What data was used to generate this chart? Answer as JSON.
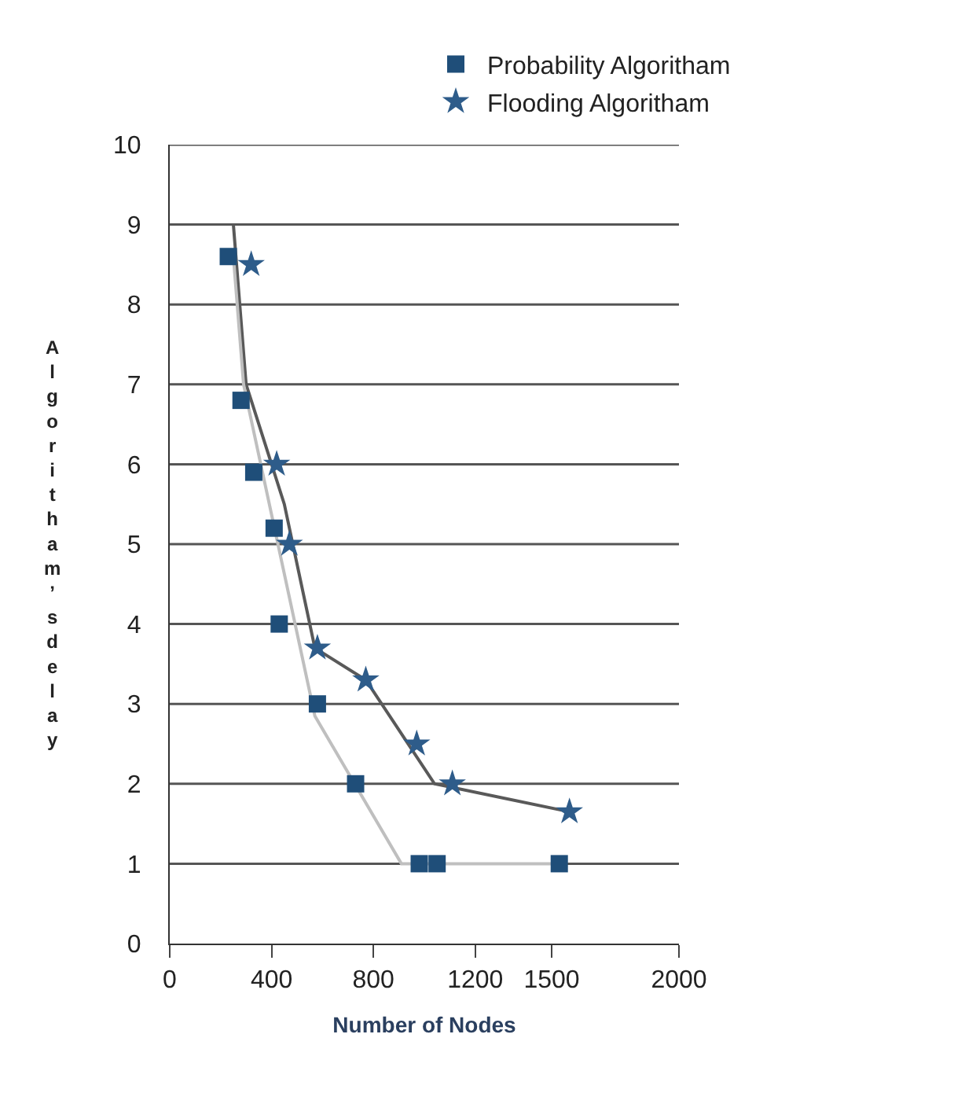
{
  "chart_data": {
    "type": "scatter",
    "xlabel": "Number of Nodes",
    "ylabel": "Algoritham’s delay",
    "xlim": [
      0,
      2000
    ],
    "xticks": [
      0,
      400,
      800,
      1200,
      1500,
      2000
    ],
    "ylim": [
      0,
      10
    ],
    "yticks": [
      0,
      1,
      2,
      3,
      4,
      5,
      6,
      7,
      8,
      9,
      10
    ],
    "grid": "y",
    "legend": "top",
    "series": [
      {
        "type": "line",
        "color": "#595959",
        "marker": "none",
        "x": [
          250,
          300,
          450,
          570,
          770,
          1040,
          1570
        ],
        "values": [
          9,
          7,
          5.5,
          3.7,
          3.3,
          2,
          1.65
        ]
      },
      {
        "type": "line",
        "color": "#bfbfbf",
        "marker": "none",
        "x": [
          250,
          290,
          570,
          910,
          1530
        ],
        "values": [
          8.6,
          7,
          2.85,
          1,
          1
        ]
      },
      {
        "name": "Probability Algoritham",
        "color": "#1f4e79",
        "marker": "square",
        "x": [
          230,
          280,
          330,
          410,
          430,
          580,
          730,
          980,
          1050,
          1530
        ],
        "values": [
          8.6,
          6.8,
          5.9,
          5.2,
          4.0,
          3.0,
          2.0,
          1,
          1,
          1
        ]
      },
      {
        "name": "Flooding Algoritham",
        "color": "#2e5c8a",
        "marker": "star",
        "x": [
          320,
          420,
          470,
          580,
          770,
          970,
          1110,
          1570
        ],
        "values": [
          8.5,
          6.0,
          5.0,
          3.7,
          3.3,
          2.5,
          2.0,
          1.65
        ]
      }
    ]
  }
}
